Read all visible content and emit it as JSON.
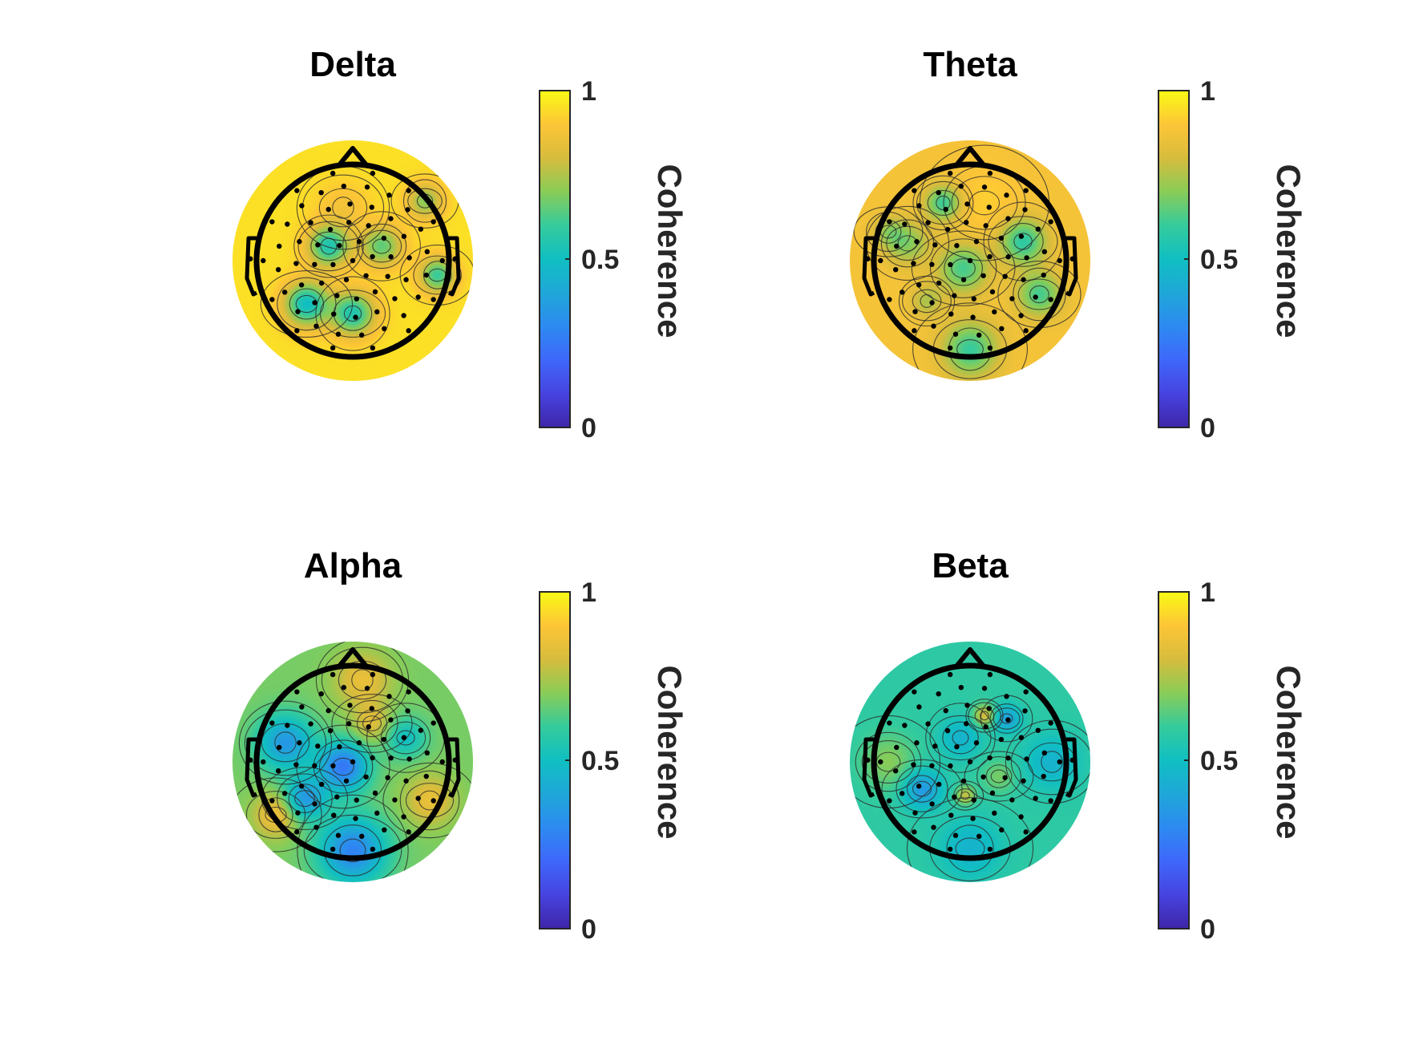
{
  "chart_data": [
    {
      "type": "heatmap",
      "subtype": "eeg-topoplot",
      "title": "Delta",
      "colorbar": {
        "label": "Coherence",
        "ticks": [
          0,
          0.5,
          1
        ],
        "tick_labels": [
          "0",
          "0.5",
          "1"
        ],
        "range": [
          0,
          1
        ]
      },
      "background_value": 0.95,
      "peaks": [
        {
          "x": -0.25,
          "y": 0.15,
          "value": 0.55,
          "w": 0.15
        },
        {
          "x": 0.3,
          "y": 0.15,
          "value": 0.65,
          "w": 0.15
        },
        {
          "x": -0.48,
          "y": -0.45,
          "value": 0.5,
          "w": 0.16
        },
        {
          "x": 0.0,
          "y": -0.55,
          "value": 0.55,
          "w": 0.16
        },
        {
          "x": 0.75,
          "y": 0.62,
          "value": 0.7,
          "w": 0.13
        },
        {
          "x": 0.88,
          "y": -0.15,
          "value": 0.6,
          "w": 0.13
        },
        {
          "x": -0.1,
          "y": 0.55,
          "value": 0.88,
          "w": 0.2
        }
      ]
    },
    {
      "type": "heatmap",
      "subtype": "eeg-topoplot",
      "title": "Theta",
      "colorbar": {
        "label": "Coherence",
        "ticks": [
          0,
          0.5,
          1
        ],
        "tick_labels": [
          "0",
          "0.5",
          "1"
        ],
        "range": [
          0,
          1
        ]
      },
      "background_value": 0.88,
      "peaks": [
        {
          "x": -0.28,
          "y": 0.6,
          "value": 0.6,
          "w": 0.13
        },
        {
          "x": -0.65,
          "y": 0.18,
          "value": 0.7,
          "w": 0.16
        },
        {
          "x": -0.07,
          "y": -0.08,
          "value": 0.62,
          "w": 0.18
        },
        {
          "x": 0.55,
          "y": 0.2,
          "value": 0.58,
          "w": 0.17
        },
        {
          "x": 0.72,
          "y": -0.35,
          "value": 0.62,
          "w": 0.16
        },
        {
          "x": 0.0,
          "y": -0.92,
          "value": 0.6,
          "w": 0.2
        },
        {
          "x": -0.45,
          "y": -0.42,
          "value": 0.75,
          "w": 0.12
        },
        {
          "x": 0.15,
          "y": 0.6,
          "value": 0.92,
          "w": 0.25
        },
        {
          "x": -0.85,
          "y": 0.3,
          "value": 0.75,
          "w": 0.12
        }
      ]
    },
    {
      "type": "heatmap",
      "subtype": "eeg-topoplot",
      "title": "Alpha",
      "colorbar": {
        "label": "Coherence",
        "ticks": [
          0,
          0.5,
          1
        ],
        "tick_labels": [
          "0",
          "0.5",
          "1"
        ],
        "range": [
          0,
          1
        ]
      },
      "background_value": 0.68,
      "peaks": [
        {
          "x": -0.7,
          "y": 0.2,
          "value": 0.35,
          "w": 0.2
        },
        {
          "x": -0.1,
          "y": -0.05,
          "value": 0.25,
          "w": 0.18
        },
        {
          "x": -0.5,
          "y": -0.38,
          "value": 0.35,
          "w": 0.15
        },
        {
          "x": 0.0,
          "y": -0.92,
          "value": 0.28,
          "w": 0.24
        },
        {
          "x": 0.8,
          "y": -0.4,
          "value": 0.85,
          "w": 0.18
        },
        {
          "x": -0.8,
          "y": -0.55,
          "value": 0.88,
          "w": 0.16
        },
        {
          "x": 0.1,
          "y": 0.85,
          "value": 0.85,
          "w": 0.2
        },
        {
          "x": 0.55,
          "y": 0.25,
          "value": 0.5,
          "w": 0.15
        },
        {
          "x": 0.2,
          "y": 0.4,
          "value": 0.82,
          "w": 0.14
        }
      ]
    },
    {
      "type": "heatmap",
      "subtype": "eeg-topoplot",
      "title": "Beta",
      "colorbar": {
        "label": "Coherence",
        "ticks": [
          0,
          0.5,
          1
        ],
        "tick_labels": [
          "0",
          "0.5",
          "1"
        ],
        "range": [
          0,
          1
        ]
      },
      "background_value": 0.58,
      "peaks": [
        {
          "x": 0.15,
          "y": 0.48,
          "value": 0.82,
          "w": 0.08
        },
        {
          "x": 0.38,
          "y": 0.45,
          "value": 0.38,
          "w": 0.1
        },
        {
          "x": -0.5,
          "y": -0.28,
          "value": 0.35,
          "w": 0.14
        },
        {
          "x": -0.1,
          "y": 0.25,
          "value": 0.45,
          "w": 0.15
        },
        {
          "x": -0.05,
          "y": -0.35,
          "value": 0.78,
          "w": 0.07
        },
        {
          "x": 0.0,
          "y": -0.9,
          "value": 0.45,
          "w": 0.22
        },
        {
          "x": 0.85,
          "y": 0.0,
          "value": 0.45,
          "w": 0.2
        },
        {
          "x": -0.85,
          "y": 0.0,
          "value": 0.7,
          "w": 0.2
        },
        {
          "x": 0.3,
          "y": -0.15,
          "value": 0.68,
          "w": 0.12
        }
      ]
    }
  ]
}
